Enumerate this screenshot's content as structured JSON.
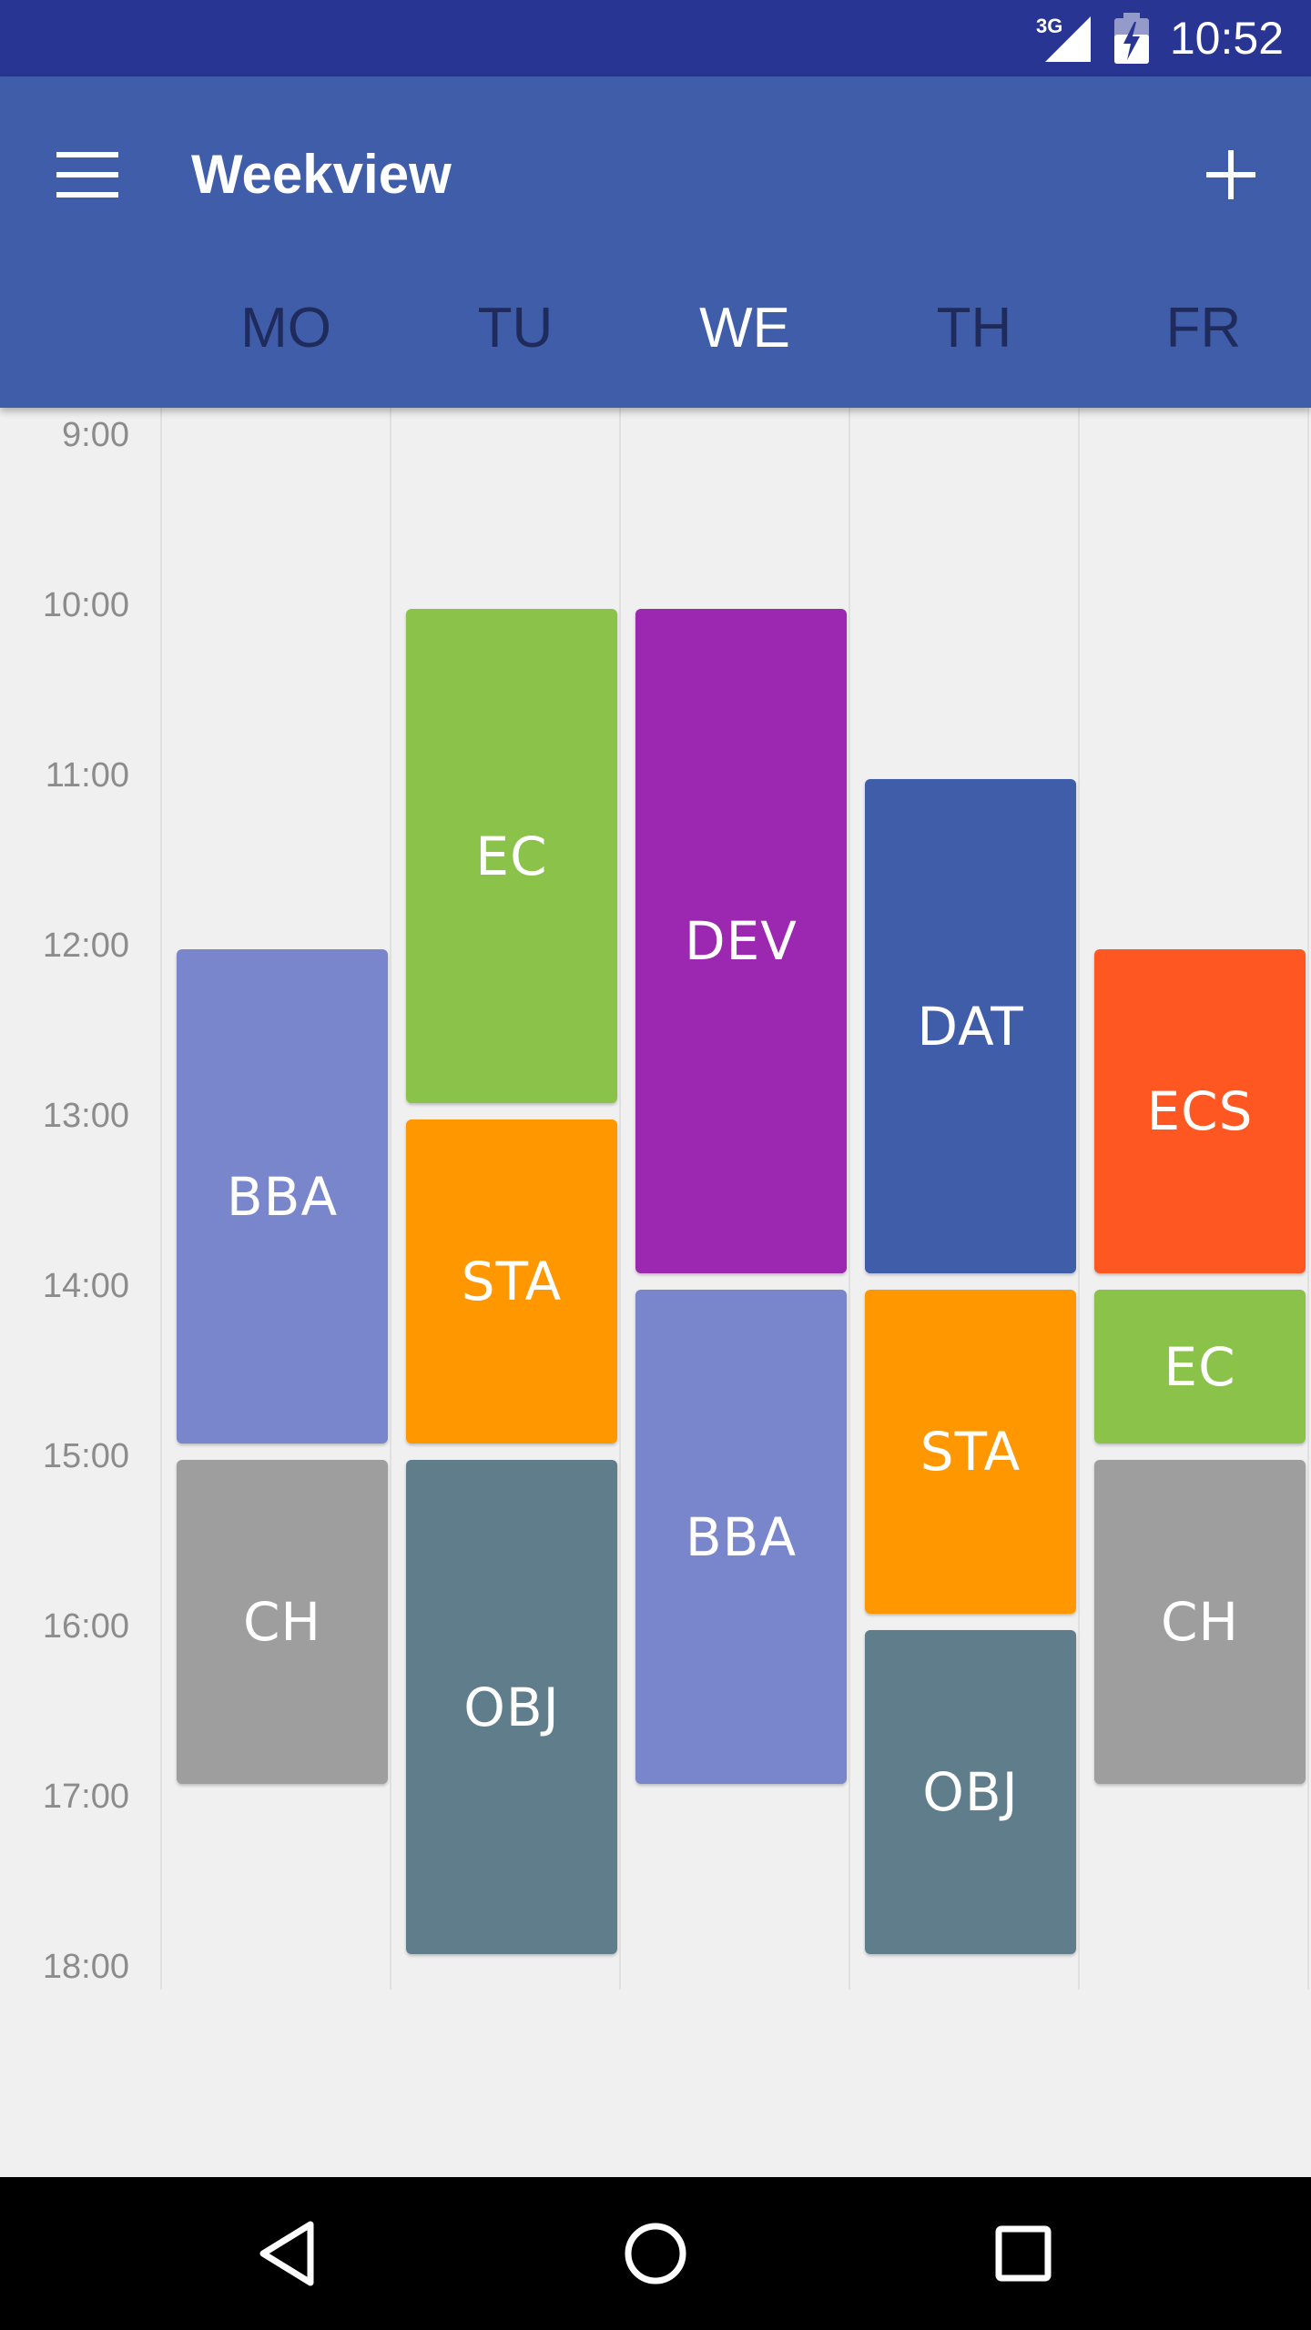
{
  "status_bar": {
    "network": "3G",
    "time": "10:52"
  },
  "toolbar": {
    "title": "Weekview",
    "menu_icon": "menu-icon",
    "add_icon": "add-icon"
  },
  "days": [
    {
      "label": "MO",
      "today": false
    },
    {
      "label": "TU",
      "today": false
    },
    {
      "label": "WE",
      "today": true
    },
    {
      "label": "TH",
      "today": false
    },
    {
      "label": "FR",
      "today": false
    }
  ],
  "hours": [
    "9:00",
    "10:00",
    "11:00",
    "12:00",
    "13:00",
    "14:00",
    "15:00",
    "16:00",
    "17:00",
    "18:00"
  ],
  "colors": {
    "status_bar": "#283593",
    "toolbar": "#3f5da9",
    "background": "#f0f0f0"
  },
  "events": [
    {
      "day": 0,
      "start": 12,
      "end": 15,
      "label": "BBA",
      "color": "#7986cb"
    },
    {
      "day": 0,
      "start": 15,
      "end": 17,
      "label": "CH",
      "color": "#9e9e9e"
    },
    {
      "day": 1,
      "start": 10,
      "end": 13,
      "label": "EC",
      "color": "#8bc34a"
    },
    {
      "day": 1,
      "start": 13,
      "end": 15,
      "label": "STA",
      "color": "#ff9800"
    },
    {
      "day": 1,
      "start": 15,
      "end": 18,
      "label": "OBJ",
      "color": "#607d8b"
    },
    {
      "day": 2,
      "start": 10,
      "end": 14,
      "label": "DEV",
      "color": "#9c27b0"
    },
    {
      "day": 2,
      "start": 14,
      "end": 17,
      "label": "BBA",
      "color": "#7986cb"
    },
    {
      "day": 3,
      "start": 11,
      "end": 14,
      "label": "DAT",
      "color": "#3f5da9"
    },
    {
      "day": 3,
      "start": 14,
      "end": 16,
      "label": "STA",
      "color": "#ff9800"
    },
    {
      "day": 3,
      "start": 16,
      "end": 18,
      "label": "OBJ",
      "color": "#607d8b"
    },
    {
      "day": 4,
      "start": 12,
      "end": 14,
      "label": "ECS",
      "color": "#ff5722"
    },
    {
      "day": 4,
      "start": 14,
      "end": 15,
      "label": "EC",
      "color": "#8bc34a"
    },
    {
      "day": 4,
      "start": 15,
      "end": 17,
      "label": "CH",
      "color": "#9e9e9e"
    }
  ],
  "nav_bar": {
    "back_icon": "back-icon",
    "home_icon": "home-icon",
    "recents_icon": "recents-icon"
  }
}
